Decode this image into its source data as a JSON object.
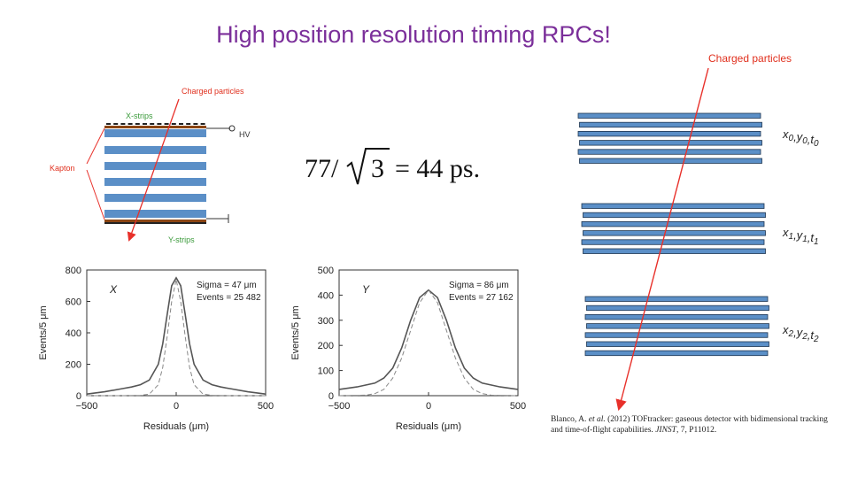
{
  "title": "High position resolution timing RPCs!",
  "colors": {
    "title": "#7b2f9a",
    "strip": "#5b8fc7",
    "arrow": "#e8302a",
    "label_red": "#e0301e",
    "label_green": "#3a9a3a",
    "kapton": "#8b4513"
  },
  "diagram_left": {
    "charged_particles": "Charged particles",
    "x_strips": "X-strips",
    "hv": "HV",
    "kapton": "Kapton",
    "y_strips": "Y-strips"
  },
  "formula": {
    "numerator": "77/",
    "radicand": "3",
    "result": "= 44 ps."
  },
  "diagram_right": {
    "charged_particles": "Charged particles",
    "labels": [
      {
        "x": "x",
        "xs": "0",
        "y": "y",
        "ys": "0",
        "t": "t",
        "ts": "0"
      },
      {
        "x": "x",
        "xs": "1",
        "y": "y",
        "ys": "1",
        "t": "t",
        "ts": "1"
      },
      {
        "x": "x",
        "xs": "2",
        "y": "y",
        "ys": "2",
        "t": "t",
        "ts": "2"
      }
    ]
  },
  "citation": {
    "authors": "Blanco, A.",
    "etal": " et al.",
    "rest1": " (2012) TOFtracker: gaseous detector with bidimensional tracking and time-of-flight capabilities. ",
    "journal": "JINST",
    "rest2": ", 7, P11012."
  },
  "chart_data": [
    {
      "type": "line",
      "panel_label": "X",
      "xlabel": "Residuals (μm)",
      "ylabel": "Events/5 μm",
      "xlim": [
        -500,
        500
      ],
      "ylim": [
        0,
        800
      ],
      "xticks": [
        "−500",
        "0",
        "500"
      ],
      "yticks": [
        "0",
        "200",
        "400",
        "600",
        "800"
      ],
      "annotation": [
        "Sigma = 47 μm",
        "Events = 25 482"
      ],
      "series": [
        {
          "x": [
            -500,
            -400,
            -300,
            -250,
            -200,
            -150,
            -100,
            -75,
            -50,
            -25,
            0,
            25,
            50,
            75,
            100,
            150,
            200,
            250,
            300,
            400,
            500
          ],
          "y": [
            10,
            25,
            45,
            55,
            70,
            100,
            200,
            330,
            520,
            700,
            750,
            700,
            520,
            330,
            200,
            100,
            70,
            55,
            45,
            25,
            10
          ]
        },
        {
          "x": [
            -500,
            -300,
            -200,
            -150,
            -100,
            -75,
            -50,
            -25,
            0,
            25,
            50,
            75,
            100,
            150,
            200,
            300,
            500
          ],
          "y": [
            0,
            0,
            2,
            10,
            70,
            180,
            380,
            600,
            740,
            600,
            380,
            180,
            70,
            10,
            2,
            0,
            0
          ]
        }
      ]
    },
    {
      "type": "line",
      "panel_label": "Y",
      "xlabel": "Residuals (μm)",
      "ylabel": "Events/5 μm",
      "xlim": [
        -500,
        500
      ],
      "ylim": [
        0,
        500
      ],
      "xticks": [
        "−500",
        "0",
        "500"
      ],
      "yticks": [
        "0",
        "100",
        "200",
        "300",
        "400",
        "500"
      ],
      "annotation": [
        "Sigma = 86 μm",
        "Events = 27 162"
      ],
      "series": [
        {
          "x": [
            -500,
            -400,
            -300,
            -250,
            -200,
            -150,
            -100,
            -50,
            0,
            50,
            100,
            150,
            200,
            250,
            300,
            400,
            500
          ],
          "y": [
            25,
            35,
            50,
            70,
            110,
            190,
            300,
            390,
            420,
            390,
            300,
            190,
            110,
            70,
            50,
            35,
            25
          ]
        },
        {
          "x": [
            -500,
            -350,
            -300,
            -250,
            -200,
            -150,
            -100,
            -50,
            0,
            50,
            100,
            150,
            200,
            250,
            300,
            350,
            500
          ],
          "y": [
            0,
            2,
            8,
            25,
            70,
            150,
            260,
            370,
            420,
            370,
            260,
            150,
            70,
            25,
            8,
            2,
            0
          ]
        }
      ]
    }
  ]
}
